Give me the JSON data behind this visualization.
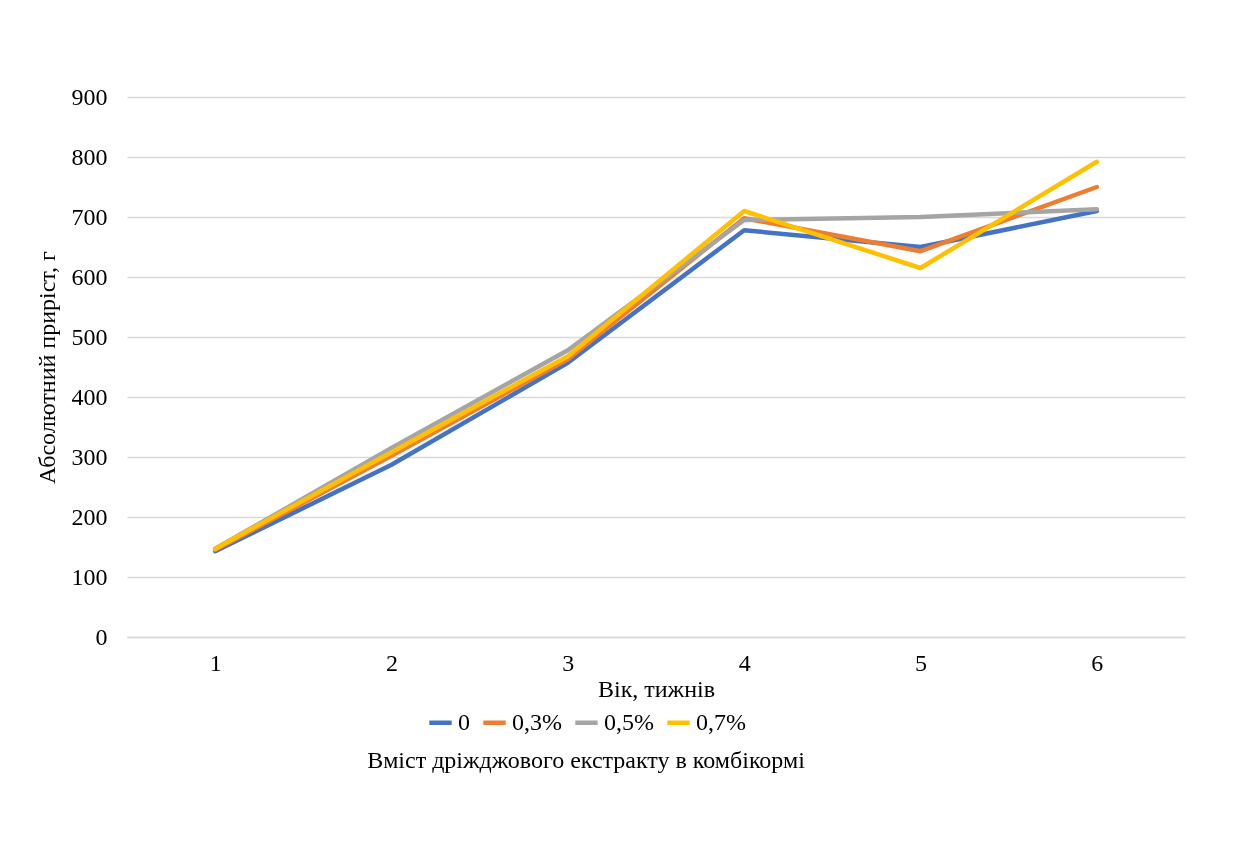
{
  "chart_data": {
    "type": "line",
    "xlabel": "Вік, тижнів",
    "ylabel": "Абсолютний  приріст,  г",
    "legend_title": "Вміст дріжджового екстракту в комбікормі",
    "categories": [
      "1",
      "2",
      "3",
      "4",
      "5",
      "6"
    ],
    "series": [
      {
        "name": "0",
        "color": "#4472c4",
        "values": [
          143,
          287,
          457,
          678,
          650,
          710
        ]
      },
      {
        "name": "0,3%",
        "color": "#ed7d31",
        "values": [
          145,
          302,
          463,
          698,
          643,
          750
        ]
      },
      {
        "name": "0,5%",
        "color": "#a5a5a5",
        "values": [
          147,
          315,
          478,
          695,
          700,
          713
        ]
      },
      {
        "name": "0,7%",
        "color": "#ffc000",
        "values": [
          147,
          308,
          468,
          710,
          615,
          792
        ]
      }
    ],
    "ylim": [
      0,
      900
    ],
    "yticks": [
      0,
      100,
      200,
      300,
      400,
      500,
      600,
      700,
      800,
      900
    ],
    "grid": "y",
    "legend": "bottom",
    "marker": "none",
    "line_style": "solid"
  }
}
